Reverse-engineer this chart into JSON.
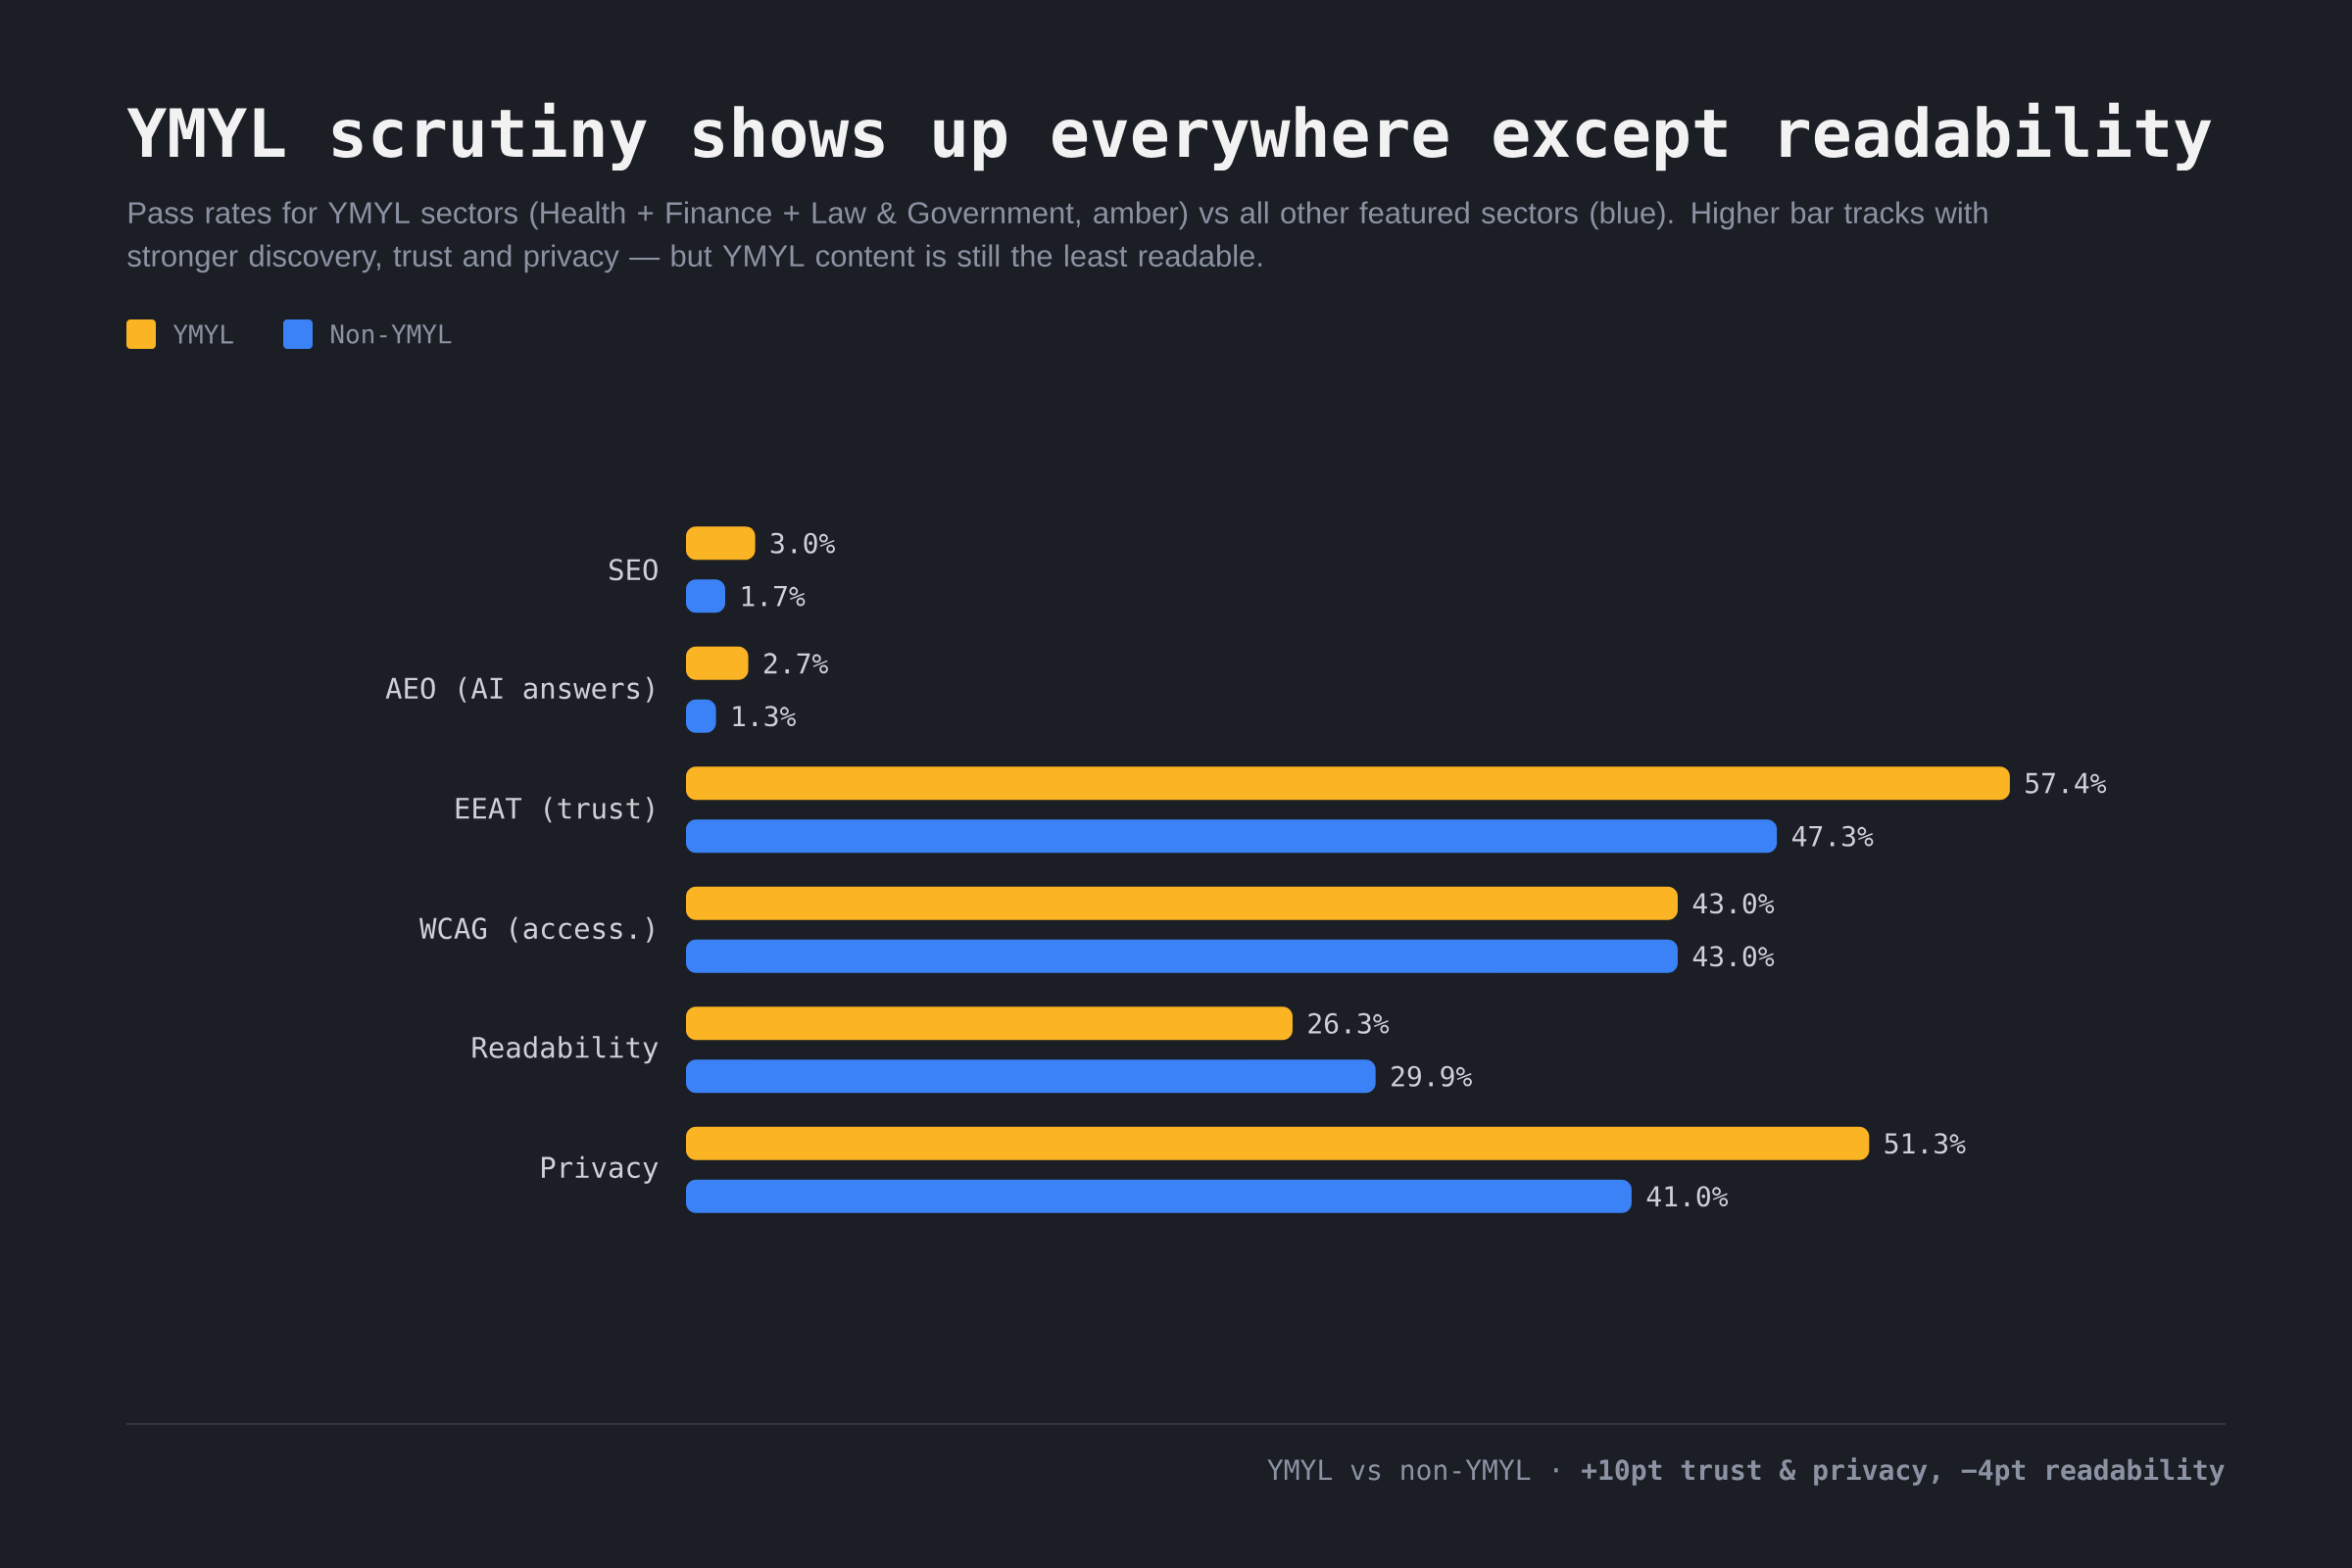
{
  "chart_data": {
    "type": "bar",
    "orientation": "horizontal",
    "title": "YMYL scrutiny shows up everywhere except readability",
    "subtitle": "Pass rates for YMYL sectors (Health + Finance + Law & Government, amber) vs all other featured sectors (blue). Higher bar tracks with stronger discovery, trust and privacy — but YMYL content is still the least readable.",
    "categories": [
      "SEO",
      "AEO (AI answers)",
      "EEAT (trust)",
      "WCAG (access.)",
      "Readability",
      "Privacy"
    ],
    "series": [
      {
        "name": "YMYL",
        "color": "#fbb423",
        "values": [
          3.0,
          2.7,
          57.4,
          43.0,
          26.3,
          51.3
        ],
        "value_labels": [
          "3.0%",
          "2.7%",
          "57.4%",
          "43.0%",
          "26.3%",
          "51.3%"
        ]
      },
      {
        "name": "Non-YMYL",
        "color": "#3b82f6",
        "values": [
          1.7,
          1.3,
          47.3,
          43.0,
          29.9,
          41.0
        ],
        "value_labels": [
          "1.7%",
          "1.3%",
          "47.3%",
          "43.0%",
          "29.9%",
          "41.0%"
        ]
      }
    ],
    "legend": "top left",
    "tick_labels": "y",
    "annotations": [
      "YMYL vs non-YMYL · **+10pt trust & privacy, −4pt readability**"
    ]
  }
}
